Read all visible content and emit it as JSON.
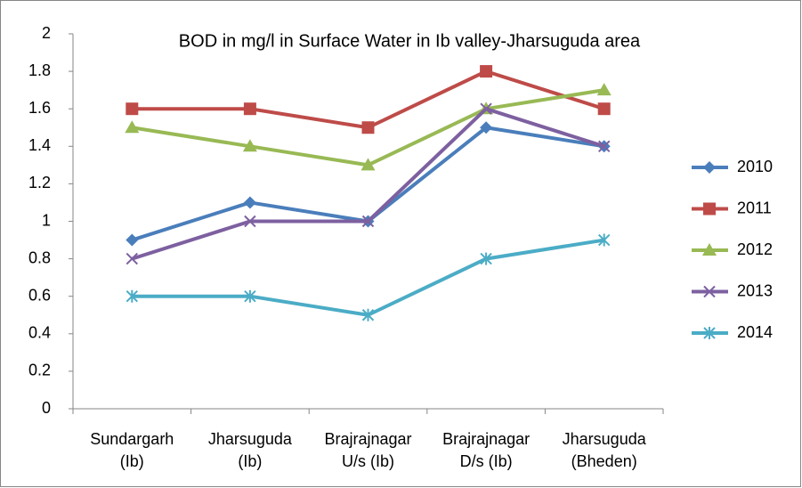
{
  "chart_data": {
    "type": "line",
    "title": "BOD in mg/l in Surface Water in Ib valley-Jharsuguda  area",
    "categories": [
      "Sundargarh\n(Ib)",
      "Jharsuguda\n(Ib)",
      "Brajrajnagar\nU/s (Ib)",
      "Brajrajnagar\nD/s (Ib)",
      "Jharsuguda\n(Bheden)"
    ],
    "series": [
      {
        "name": "2010",
        "color": "#4a7ebb",
        "marker": "diamond",
        "values": [
          0.9,
          1.1,
          1.0,
          1.5,
          1.4
        ]
      },
      {
        "name": "2011",
        "color": "#be4b48",
        "marker": "square",
        "values": [
          1.6,
          1.6,
          1.5,
          1.8,
          1.6
        ]
      },
      {
        "name": "2012",
        "color": "#98b954",
        "marker": "triangle",
        "values": [
          1.5,
          1.4,
          1.3,
          1.6,
          1.7
        ]
      },
      {
        "name": "2013",
        "color": "#7d60a0",
        "marker": "x",
        "values": [
          0.8,
          1.0,
          1.0,
          1.6,
          1.4
        ]
      },
      {
        "name": "2014",
        "color": "#4bacc6",
        "marker": "star",
        "values": [
          0.6,
          0.6,
          0.5,
          0.8,
          0.9
        ]
      }
    ],
    "ylim": [
      0,
      2
    ],
    "yticks": [
      0,
      0.2,
      0.4,
      0.6,
      0.8,
      1,
      1.2,
      1.4,
      1.6,
      1.8,
      2
    ],
    "grid": false,
    "legend": "right"
  }
}
